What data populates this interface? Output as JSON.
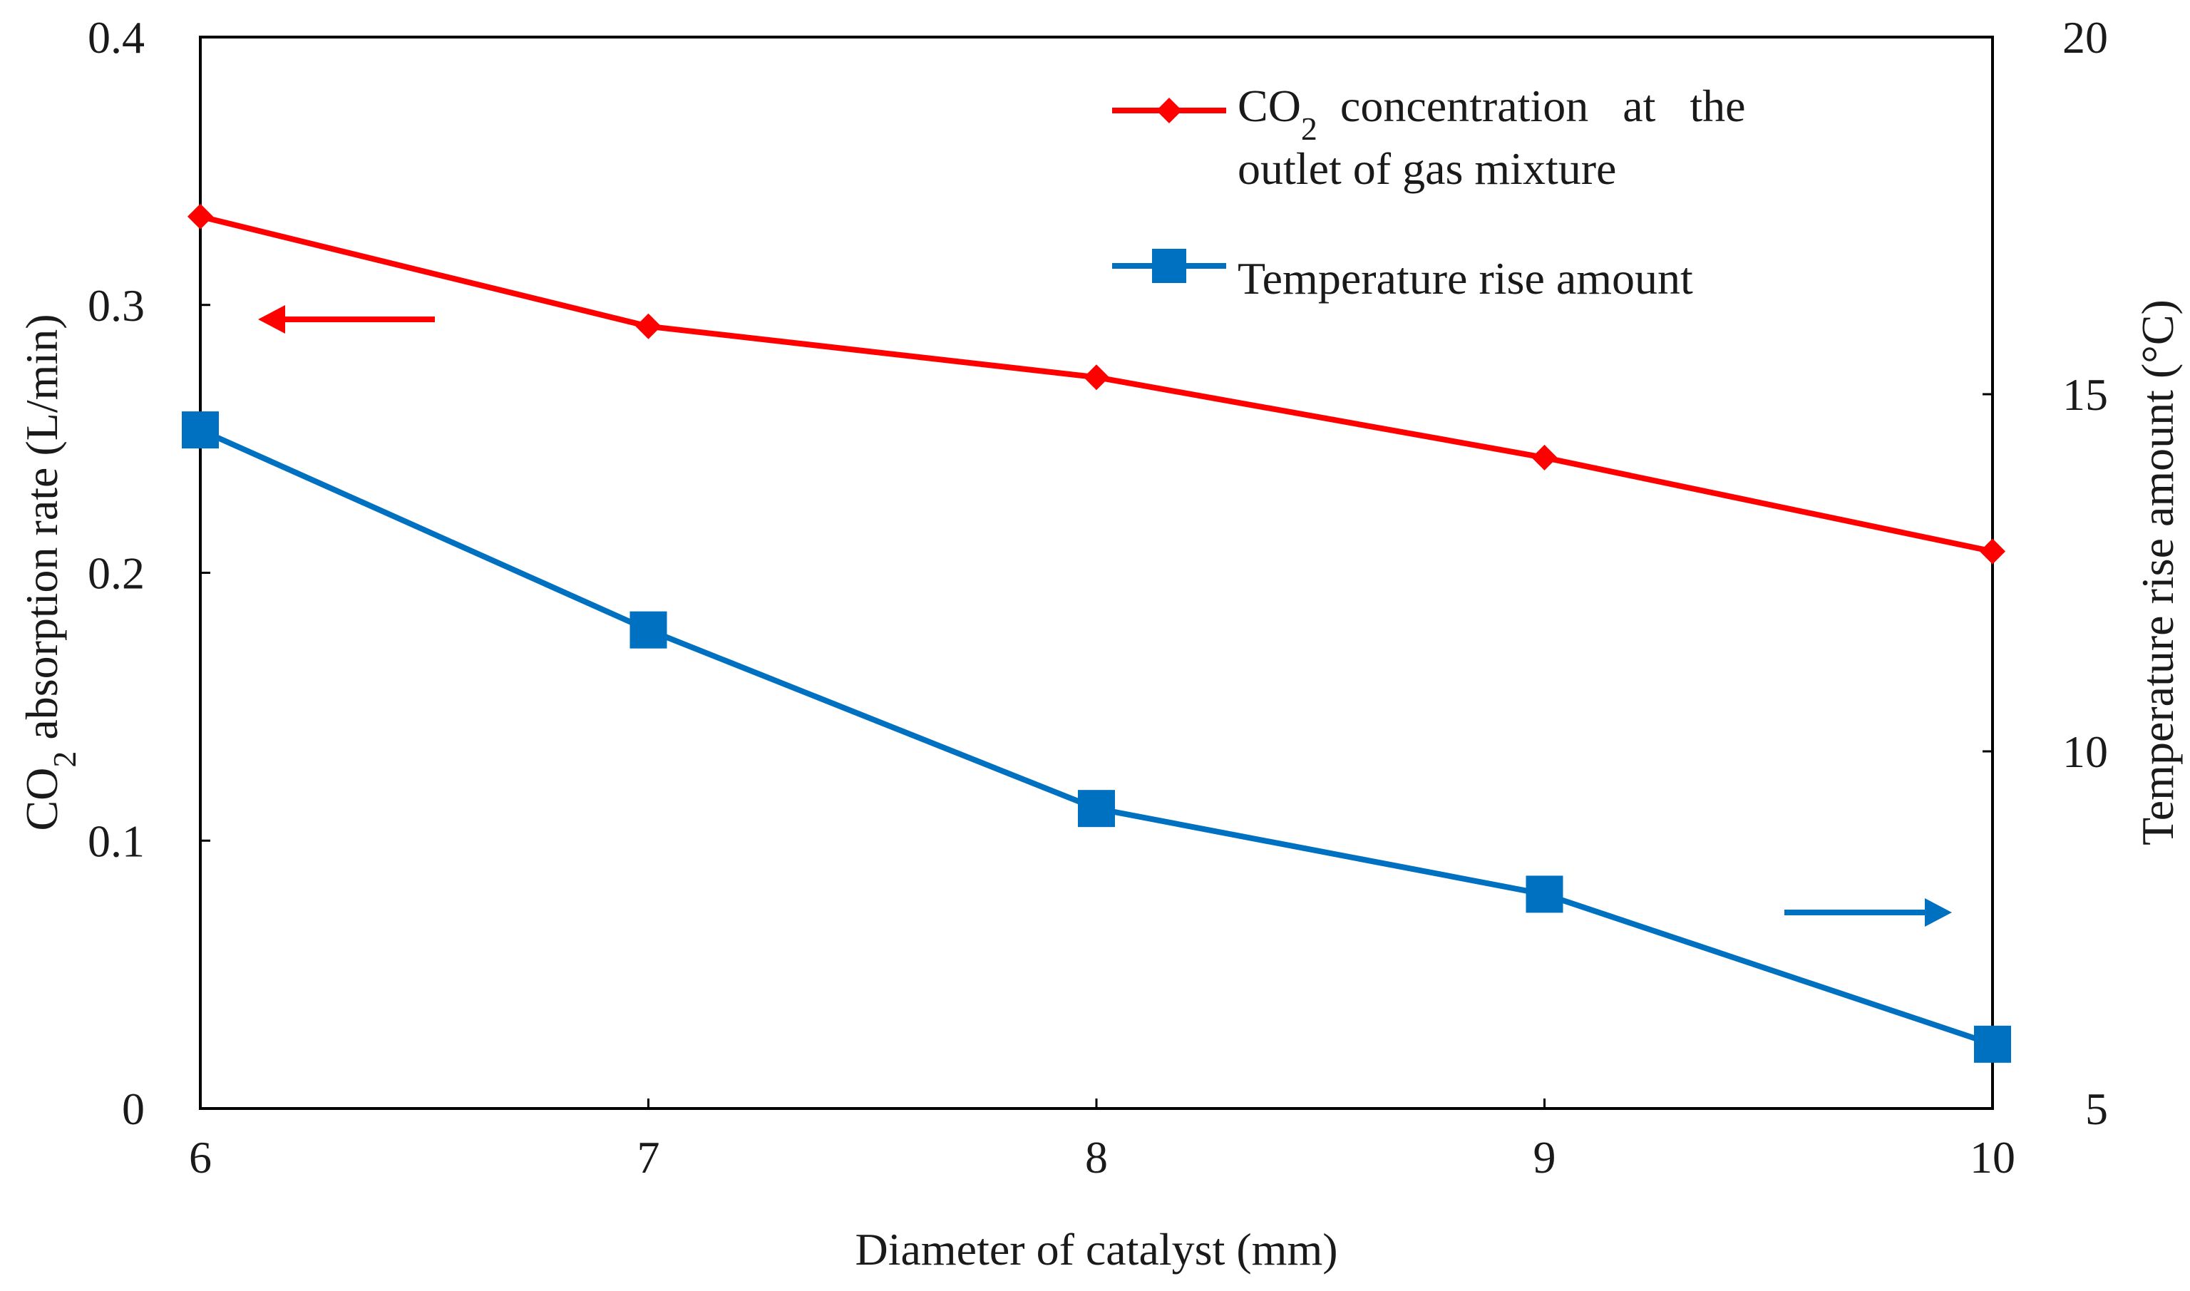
{
  "chart_data": {
    "type": "line",
    "x": [
      6,
      7,
      8,
      9,
      10
    ],
    "xlim": [
      6,
      10
    ],
    "xticks": [
      "6",
      "7",
      "8",
      "9",
      "10"
    ],
    "xlabel": "Diameter of catalyst (mm)",
    "y_left": {
      "label_main": "CO",
      "label_sub": "2",
      "label_rest": " absorption rate  (L/min)",
      "ylim": [
        0,
        0.4
      ],
      "ticks": [
        "0",
        "0.1",
        "0.2",
        "0.3",
        "0.4"
      ]
    },
    "y_right": {
      "label": "Temperature rise amount (°C)",
      "ylim": [
        5,
        20
      ],
      "ticks": [
        "5",
        "10",
        "15",
        "20"
      ]
    },
    "grid": false,
    "legend_position": "top-right",
    "series": [
      {
        "name": "CO2 concentration at the outlet of gas mixture",
        "legend_line1_a": "CO",
        "legend_line1_sub": "2",
        "legend_line1_b": "  concentration   at   the",
        "legend_line2": "outlet of gas mixture",
        "axis": "left",
        "color": "#ff0000",
        "marker": "diamond",
        "values": [
          0.333,
          0.292,
          0.273,
          0.243,
          0.208
        ]
      },
      {
        "name": "Temperature rise amount",
        "legend_line1_a": "Temperature rise amount",
        "axis": "right",
        "color": "#0070c0",
        "marker": "square",
        "values": [
          14.5,
          11.7,
          9.2,
          8.0,
          5.9
        ]
      }
    ],
    "annotations": [
      {
        "type": "arrow",
        "direction": "left",
        "points_to_axis": "left",
        "color": "#ff0000"
      },
      {
        "type": "arrow",
        "direction": "right",
        "points_to_axis": "right",
        "color": "#0070c0"
      }
    ]
  }
}
